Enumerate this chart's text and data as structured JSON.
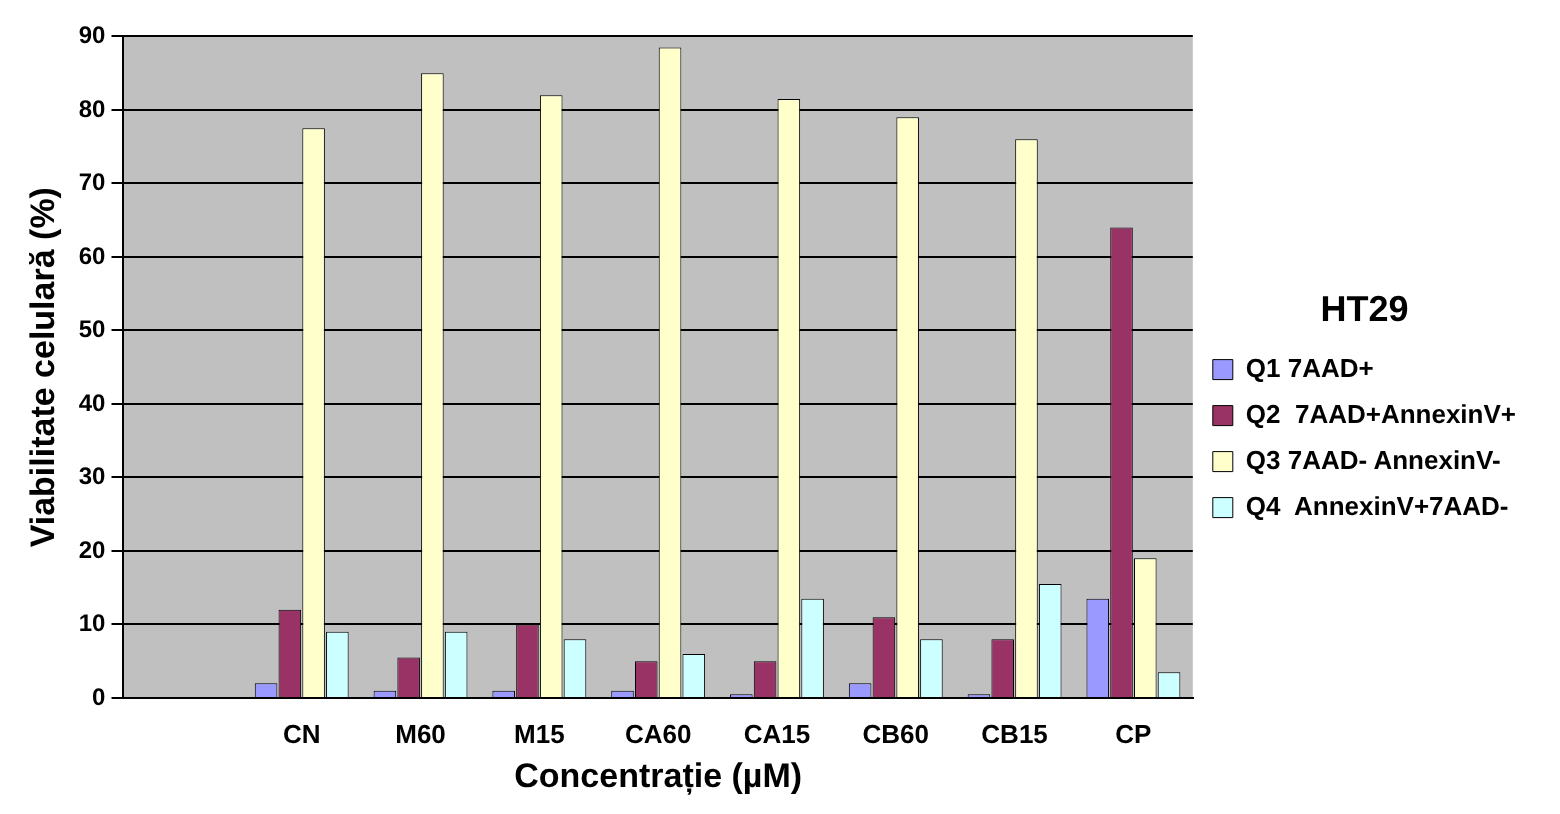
{
  "chart_data": {
    "type": "bar",
    "xlabel": "Concentrație (µM)",
    "ylabel": "Viabilitate celulară (%)",
    "legend_title": "HT29",
    "categories": [
      null,
      "CN",
      "M60",
      "M15",
      "CA60",
      "CA15",
      "CB60",
      "CB15",
      "CP"
    ],
    "series": [
      {
        "name": "Q1 7AAD+",
        "color": "#9999ff",
        "values": [
          null,
          2,
          1,
          1,
          1,
          0.5,
          2,
          0.5,
          13.5
        ]
      },
      {
        "name": "Q2  7AAD+AnnexinV+",
        "color": "#993366",
        "values": [
          null,
          12,
          5.5,
          10,
          5,
          5,
          11,
          8,
          64
        ]
      },
      {
        "name": "Q3 7AAD- AnnexinV-",
        "color": "#ffffcc",
        "values": [
          null,
          77.5,
          85,
          82,
          88.5,
          81.5,
          79,
          76,
          19
        ]
      },
      {
        "name": "Q4  AnnexinV+7AAD-",
        "color": "#ccffff",
        "values": [
          null,
          9,
          9,
          8,
          6,
          13.5,
          8,
          15.5,
          3.5
        ]
      }
    ],
    "ylim": [
      0,
      90
    ],
    "yticks": [
      0,
      10,
      20,
      30,
      40,
      50,
      60,
      70,
      80,
      90
    ],
    "grid": "y",
    "legend": "right"
  }
}
